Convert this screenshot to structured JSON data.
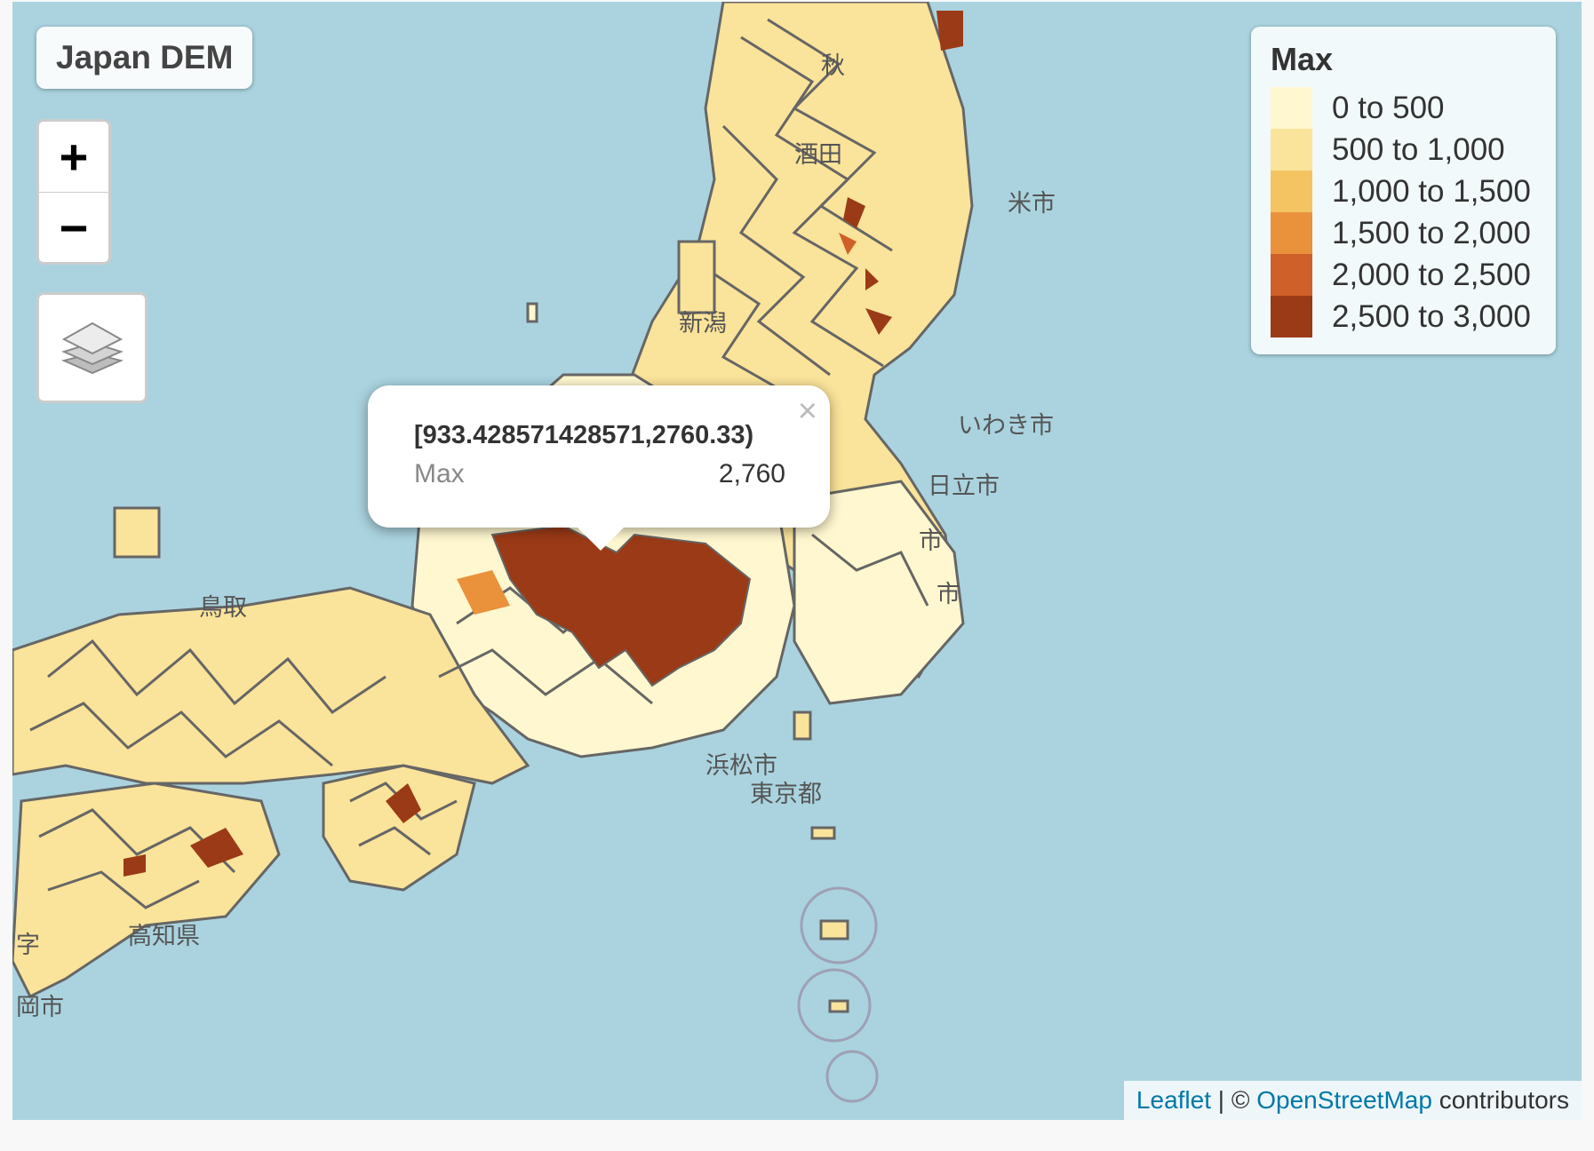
{
  "title": "Japan DEM",
  "zoom": {
    "in_label": "+",
    "out_label": "−"
  },
  "legend": {
    "title": "Max",
    "items": [
      {
        "label": "0 to 500",
        "color": "#fff7cf"
      },
      {
        "label": "500 to 1,000",
        "color": "#fae39a"
      },
      {
        "label": "1,000 to 1,500",
        "color": "#f4c462"
      },
      {
        "label": "1,500 to 2,000",
        "color": "#ea913c"
      },
      {
        "label": "2,000 to 2,500",
        "color": "#d0602a"
      },
      {
        "label": "2,500 to 3,000",
        "color": "#9b3a17"
      }
    ]
  },
  "popup": {
    "header": "[933.428571428571,2760.33)",
    "key": "Max",
    "value": "2,760",
    "close": "×"
  },
  "places": [
    "秋",
    "酒田",
    "米市",
    "新潟",
    "いわき市",
    "日立市",
    "市",
    "市",
    "鳥取",
    "浜松市",
    "東京都",
    "高知県",
    "字",
    "岡市"
  ],
  "attribution": {
    "leaflet": "Leaflet",
    "sep": " | © ",
    "osm": "OpenStreetMap",
    "rest": " contributors"
  }
}
